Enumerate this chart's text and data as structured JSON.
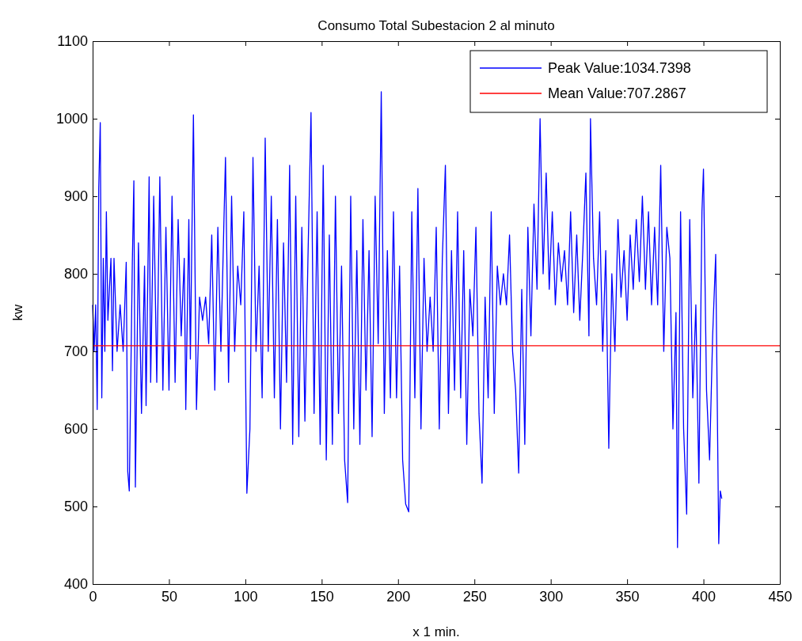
{
  "chart_data": {
    "type": "line",
    "title": "Consumo Total Subestacion 2 al minuto",
    "xlabel": "x 1 min.",
    "ylabel": "kw",
    "xlim": [
      0,
      450
    ],
    "xticks": [
      0,
      50,
      100,
      150,
      200,
      250,
      300,
      350,
      400,
      450
    ],
    "ylim": [
      400,
      1100
    ],
    "yticks": [
      400,
      500,
      600,
      700,
      800,
      900,
      1000,
      1100
    ],
    "grid": false,
    "legend": "top right",
    "marker": "none",
    "line_style": "solid",
    "series": [
      {
        "name": "Peak Value:1034.7398",
        "color": "#0000ff",
        "x": [
          0,
          1,
          2,
          3,
          4,
          5,
          6,
          7,
          8,
          9,
          10,
          12,
          13,
          14,
          16,
          18,
          20,
          22,
          23,
          24,
          26,
          27,
          28,
          30,
          32,
          34,
          35,
          37,
          38,
          40,
          42,
          44,
          46,
          48,
          50,
          52,
          54,
          56,
          58,
          60,
          61,
          63,
          64,
          66,
          68,
          70,
          72,
          74,
          76,
          78,
          80,
          82,
          84,
          86,
          87,
          89,
          91,
          93,
          95,
          97,
          99,
          101,
          103,
          105,
          107,
          109,
          111,
          113,
          115,
          117,
          119,
          121,
          123,
          125,
          127,
          129,
          131,
          133,
          135,
          137,
          139,
          141,
          143,
          145,
          147,
          149,
          151,
          153,
          155,
          157,
          159,
          161,
          163,
          165,
          167,
          169,
          171,
          173,
          175,
          177,
          179,
          181,
          183,
          185,
          187,
          189,
          191,
          193,
          195,
          197,
          199,
          201,
          203,
          205,
          207,
          209,
          211,
          213,
          215,
          217,
          219,
          221,
          223,
          225,
          227,
          229,
          231,
          233,
          235,
          237,
          239,
          241,
          243,
          245,
          247,
          249,
          251,
          253,
          255,
          257,
          259,
          261,
          263,
          265,
          267,
          269,
          271,
          273,
          275,
          277,
          279,
          281,
          283,
          285,
          287,
          289,
          291,
          293,
          295,
          297,
          299,
          301,
          303,
          305,
          307,
          309,
          311,
          313,
          315,
          317,
          319,
          321,
          323,
          325,
          326,
          328,
          330,
          332,
          334,
          336,
          338,
          340,
          342,
          344,
          346,
          348,
          350,
          352,
          354,
          356,
          358,
          360,
          362,
          364,
          366,
          368,
          370,
          372,
          374,
          376,
          378,
          380,
          382,
          383,
          385,
          387,
          389,
          391,
          393,
          395,
          397,
          399,
          400,
          402,
          404,
          406,
          408,
          410,
          411,
          412
        ],
        "values": [
          760,
          700,
          760,
          625,
          910,
          995,
          640,
          820,
          700,
          880,
          740,
          820,
          675,
          820,
          700,
          760,
          700,
          815,
          545,
          520,
          815,
          920,
          525,
          840,
          620,
          810,
          630,
          925,
          660,
          900,
          660,
          925,
          650,
          860,
          650,
          900,
          660,
          870,
          720,
          820,
          625,
          870,
          690,
          1005,
          625,
          770,
          740,
          770,
          710,
          850,
          650,
          860,
          700,
          870,
          950,
          660,
          900,
          700,
          810,
          760,
          880,
          517,
          600,
          950,
          700,
          810,
          640,
          975,
          700,
          900,
          640,
          870,
          600,
          840,
          660,
          940,
          580,
          900,
          590,
          860,
          610,
          820,
          1008,
          620,
          880,
          580,
          940,
          560,
          850,
          580,
          900,
          620,
          810,
          560,
          505,
          900,
          600,
          830,
          580,
          870,
          650,
          830,
          590,
          900,
          710,
          1034.7,
          620,
          830,
          640,
          880,
          640,
          810,
          560,
          503,
          493,
          880,
          640,
          910,
          600,
          820,
          700,
          770,
          700,
          860,
          600,
          820,
          940,
          620,
          830,
          650,
          880,
          640,
          830,
          580,
          780,
          720,
          860,
          620,
          530,
          770,
          640,
          880,
          620,
          810,
          760,
          800,
          760,
          850,
          700,
          650,
          543,
          780,
          580,
          860,
          720,
          890,
          780,
          1000,
          800,
          930,
          780,
          880,
          760,
          840,
          790,
          830,
          760,
          880,
          750,
          850,
          740,
          830,
          930,
          720,
          1000,
          820,
          760,
          880,
          700,
          830,
          575,
          800,
          700,
          870,
          770,
          830,
          740,
          850,
          780,
          870,
          790,
          900,
          780,
          880,
          760,
          860,
          760,
          940,
          700,
          860,
          820,
          600,
          750,
          447,
          880,
          600,
          490,
          870,
          640,
          760,
          530,
          880,
          935,
          650,
          560,
          720,
          825,
          452,
          520,
          510
        ]
      },
      {
        "name": "Mean Value:707.2867",
        "color": "#ff0000",
        "x": [
          0,
          450
        ],
        "values": [
          707.2867,
          707.2867
        ]
      }
    ]
  }
}
